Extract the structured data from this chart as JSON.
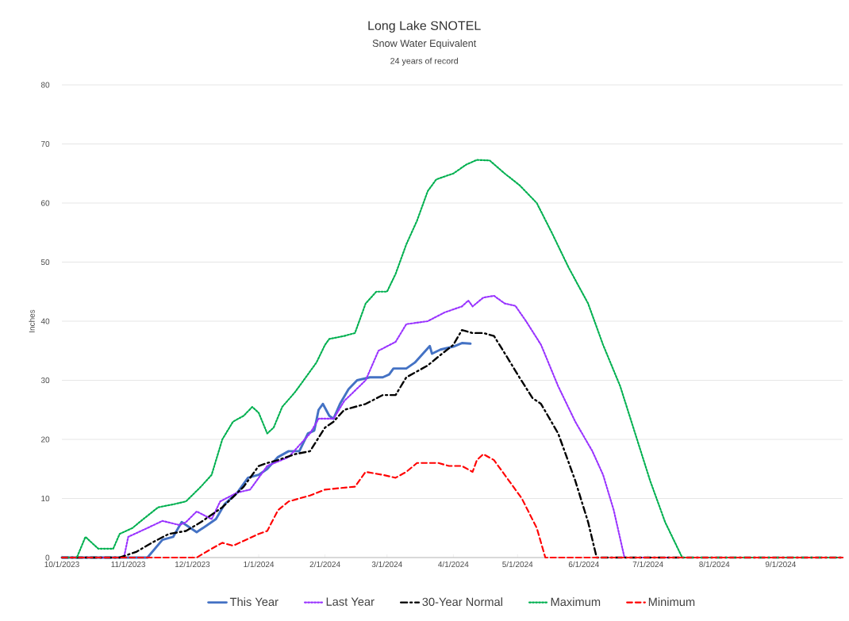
{
  "chart_data": {
    "type": "line",
    "title": "Long Lake SNOTEL",
    "subtitle": "Snow Water Equivalent",
    "annotations": [
      "24 years of record"
    ],
    "ylabel": "Inches",
    "xlim": [
      "2023-10-01",
      "2024-09-30"
    ],
    "xticks": [
      {
        "value": "2023-10-01",
        "label": "10/1/2023"
      },
      {
        "value": "2023-11-01",
        "label": "11/1/2023"
      },
      {
        "value": "2023-12-01",
        "label": "12/1/2023"
      },
      {
        "value": "2024-01-01",
        "label": "1/1/2024"
      },
      {
        "value": "2024-02-01",
        "label": "2/1/2024"
      },
      {
        "value": "2024-03-01",
        "label": "3/1/2024"
      },
      {
        "value": "2024-04-01",
        "label": "4/1/2024"
      },
      {
        "value": "2024-05-01",
        "label": "5/1/2024"
      },
      {
        "value": "2024-06-01",
        "label": "6/1/2024"
      },
      {
        "value": "2024-07-01",
        "label": "7/1/2024"
      },
      {
        "value": "2024-08-01",
        "label": "8/1/2024"
      },
      {
        "value": "2024-09-01",
        "label": "9/1/2024"
      }
    ],
    "ylim": [
      0,
      80
    ],
    "yticks": [
      0,
      10,
      20,
      30,
      40,
      50,
      60,
      70,
      80
    ],
    "grid": "y",
    "legend": "bottom",
    "marker": "none",
    "series": [
      {
        "name": "This Year",
        "color": "#4472c4",
        "line_style": "solid",
        "x": [
          "2023-10-01",
          "2023-11-10",
          "2023-11-17",
          "2023-11-22",
          "2023-11-26",
          "2023-12-03",
          "2023-12-08",
          "2023-12-12",
          "2023-12-16",
          "2023-12-22",
          "2023-12-27",
          "2024-01-01",
          "2024-01-05",
          "2024-01-10",
          "2024-01-15",
          "2024-01-20",
          "2024-01-24",
          "2024-01-27",
          "2024-01-29",
          "2024-01-31",
          "2024-02-03",
          "2024-02-05",
          "2024-02-08",
          "2024-02-12",
          "2024-02-16",
          "2024-02-22",
          "2024-02-28",
          "2024-03-02",
          "2024-03-04",
          "2024-03-10",
          "2024-03-14",
          "2024-03-19",
          "2024-03-21",
          "2024-03-22",
          "2024-03-26",
          "2024-04-01",
          "2024-04-05",
          "2024-04-09"
        ],
        "values": [
          0,
          0,
          3,
          3.5,
          6,
          4.3,
          5.5,
          6.5,
          9,
          11,
          13.5,
          14,
          15,
          17,
          18,
          18,
          21,
          21.5,
          25,
          26,
          24,
          23.5,
          26,
          28.5,
          30,
          30.5,
          30.5,
          31,
          32,
          32,
          33,
          35,
          35.8,
          34.5,
          35.2,
          35.7,
          36.3,
          36.2
        ]
      },
      {
        "name": "Last Year",
        "color": "#9933ff",
        "line_style": "dotted",
        "x": [
          "2023-10-01",
          "2023-10-30",
          "2023-11-01",
          "2023-11-10",
          "2023-11-17",
          "2023-11-25",
          "2023-11-28",
          "2023-12-03",
          "2023-12-10",
          "2023-12-14",
          "2023-12-22",
          "2023-12-28",
          "2024-01-05",
          "2024-01-15",
          "2024-01-25",
          "2024-01-29",
          "2024-02-05",
          "2024-02-10",
          "2024-02-20",
          "2024-02-26",
          "2024-03-05",
          "2024-03-10",
          "2024-03-20",
          "2024-03-28",
          "2024-04-05",
          "2024-04-08",
          "2024-04-10",
          "2024-04-15",
          "2024-04-20",
          "2024-04-25",
          "2024-04-30",
          "2024-05-05",
          "2024-05-12",
          "2024-05-20",
          "2024-05-28",
          "2024-06-05",
          "2024-06-10",
          "2024-06-15",
          "2024-06-20",
          "2024-09-30"
        ],
        "values": [
          0,
          0,
          3.5,
          5,
          6.2,
          5.5,
          6,
          7.8,
          6.5,
          9.5,
          11,
          11.5,
          15.5,
          17,
          21,
          23.5,
          23.5,
          26.5,
          30,
          35,
          36.5,
          39.5,
          40,
          41.5,
          42.5,
          43.5,
          42.5,
          44,
          44.3,
          43,
          42.6,
          40,
          36,
          29,
          23,
          18,
          14,
          8,
          0,
          0
        ]
      },
      {
        "name": "30-Year Normal",
        "color": "#000000",
        "line_style": "dashdot",
        "x": [
          "2023-10-01",
          "2023-10-28",
          "2023-11-05",
          "2023-11-12",
          "2023-11-20",
          "2023-11-28",
          "2023-12-05",
          "2023-12-15",
          "2023-12-25",
          "2024-01-01",
          "2024-01-05",
          "2024-01-10",
          "2024-01-18",
          "2024-01-25",
          "2024-02-01",
          "2024-02-05",
          "2024-02-10",
          "2024-02-20",
          "2024-02-28",
          "2024-03-05",
          "2024-03-10",
          "2024-03-15",
          "2024-03-20",
          "2024-03-25",
          "2024-04-01",
          "2024-04-05",
          "2024-04-10",
          "2024-04-15",
          "2024-04-20",
          "2024-04-26",
          "2024-05-01",
          "2024-05-08",
          "2024-05-12",
          "2024-05-20",
          "2024-05-28",
          "2024-06-03",
          "2024-06-07",
          "2024-09-30"
        ],
        "values": [
          0,
          0,
          1,
          2.5,
          4,
          4.5,
          6,
          8.5,
          12,
          15.5,
          16,
          16.5,
          17.5,
          18,
          22,
          23,
          25,
          26,
          27.5,
          27.5,
          30.5,
          31.5,
          32.5,
          34,
          36,
          38.5,
          38,
          38,
          37.5,
          34,
          31,
          27,
          26,
          21,
          13,
          6,
          0,
          0
        ]
      },
      {
        "name": "Maximum",
        "color": "#00b050",
        "line_style": "dotted",
        "x": [
          "2023-10-01",
          "2023-10-08",
          "2023-10-12",
          "2023-10-18",
          "2023-10-25",
          "2023-10-28",
          "2023-11-03",
          "2023-11-08",
          "2023-11-15",
          "2023-11-22",
          "2023-11-28",
          "2023-12-05",
          "2023-12-10",
          "2023-12-15",
          "2023-12-20",
          "2023-12-25",
          "2023-12-29",
          "2024-01-01",
          "2024-01-05",
          "2024-01-08",
          "2024-01-12",
          "2024-01-18",
          "2024-01-22",
          "2024-01-28",
          "2024-02-01",
          "2024-02-03",
          "2024-02-10",
          "2024-02-15",
          "2024-02-20",
          "2024-02-25",
          "2024-03-01",
          "2024-03-05",
          "2024-03-10",
          "2024-03-15",
          "2024-03-20",
          "2024-03-24",
          "2024-04-01",
          "2024-04-07",
          "2024-04-12",
          "2024-04-18",
          "2024-04-25",
          "2024-05-02",
          "2024-05-10",
          "2024-05-17",
          "2024-05-25",
          "2024-06-03",
          "2024-06-10",
          "2024-06-18",
          "2024-06-25",
          "2024-07-02",
          "2024-07-09",
          "2024-07-17",
          "2024-09-30"
        ],
        "values": [
          0,
          0,
          3.5,
          1.5,
          1.5,
          4,
          5,
          6.5,
          8.5,
          9,
          9.5,
          12,
          14,
          20,
          23,
          24,
          25.5,
          24.5,
          21,
          22,
          25.5,
          28,
          30,
          33,
          36,
          37,
          37.5,
          38,
          43,
          45,
          45,
          48,
          53,
          57,
          62,
          64,
          65,
          66.5,
          67.3,
          67.2,
          65,
          63,
          60,
          55,
          49,
          43,
          36,
          29,
          21,
          13,
          6,
          0,
          0
        ]
      },
      {
        "name": "Minimum",
        "color": "#ff0000",
        "line_style": "dashed",
        "x": [
          "2023-10-01",
          "2023-12-03",
          "2023-12-10",
          "2023-12-15",
          "2023-12-20",
          "2024-01-01",
          "2024-01-05",
          "2024-01-10",
          "2024-01-15",
          "2024-01-25",
          "2024-02-01",
          "2024-02-15",
          "2024-02-20",
          "2024-02-28",
          "2024-03-05",
          "2024-03-10",
          "2024-03-15",
          "2024-03-25",
          "2024-03-30",
          "2024-04-05",
          "2024-04-10",
          "2024-04-12",
          "2024-04-15",
          "2024-04-20",
          "2024-04-28",
          "2024-05-03",
          "2024-05-10",
          "2024-05-14",
          "2024-09-30"
        ],
        "values": [
          0,
          0,
          1.5,
          2.5,
          2,
          4,
          4.5,
          8,
          9.5,
          10.5,
          11.5,
          12,
          14.5,
          14,
          13.5,
          14.5,
          16,
          16,
          15.5,
          15.5,
          14.5,
          16.5,
          17.5,
          16.5,
          12.5,
          10,
          5,
          0,
          0
        ]
      }
    ]
  }
}
